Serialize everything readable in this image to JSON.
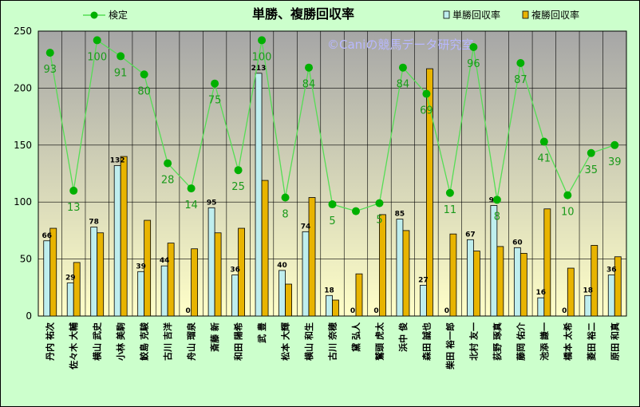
{
  "chart_data": {
    "type": "bar",
    "title": "単勝、複勝回収率",
    "watermark": "©Caniの競馬データ研究室",
    "ylim": [
      0,
      250
    ],
    "yticks": [
      0,
      50,
      100,
      150,
      200,
      250
    ],
    "grid": true,
    "legend": {
      "line_label": "検定",
      "tan_label": "単勝回収率",
      "fuku_label": "複勝回収率"
    },
    "colors": {
      "plot_bg_top": "#a6a6a6",
      "plot_bg_bottom": "#ffffc8",
      "tan": "#bfeeee",
      "fuku": "#e8b400",
      "line": "#55dd55",
      "marker": "#00b000"
    },
    "categories": [
      "丹内 祐次",
      "佐々木 大輔",
      "横山 武史",
      "小林 美駒",
      "鮫島 克駿",
      "古川 吉洋",
      "舟山 瑠泉",
      "斎藤 新",
      "和田 陽希",
      "武 豊",
      "松本 大輝",
      "横山 和生",
      "古川 奈穂",
      "黛 弘人",
      "鷲頭 虎太",
      "浜中 俊",
      "森田 誠也",
      "柴田 裕一郎",
      "北村 友一",
      "荻野 琢真",
      "藤岡 佑介",
      "池添 謙一",
      "橋本 太希",
      "菱田 裕二",
      "原田 和真"
    ],
    "series": [
      {
        "name": "単勝回収率",
        "values": [
          66,
          29,
          78,
          132,
          39,
          44,
          0,
          95,
          36,
          213,
          40,
          74,
          18,
          0,
          0,
          85,
          27,
          0,
          67,
          97,
          60,
          16,
          0,
          18,
          36
        ]
      },
      {
        "name": "複勝回収率",
        "values": [
          77,
          47,
          73,
          140,
          84,
          64,
          59,
          73,
          77,
          119,
          28,
          104,
          14,
          37,
          89,
          75,
          217,
          72,
          57,
          61,
          55,
          94,
          42,
          62,
          52
        ]
      },
      {
        "name": "検定",
        "values": [
          231,
          110,
          242,
          228,
          212,
          134,
          112,
          204,
          128,
          242,
          104,
          218,
          98,
          92,
          99,
          218,
          195,
          108,
          236,
          102,
          222,
          153,
          106,
          143,
          150
        ],
        "labels": [
          93,
          13,
          100,
          91,
          80,
          28,
          14,
          75,
          25,
          100,
          8,
          84,
          5,
          "",
          5,
          84,
          69,
          11,
          96,
          8,
          87,
          41,
          10,
          35,
          39
        ]
      }
    ]
  }
}
